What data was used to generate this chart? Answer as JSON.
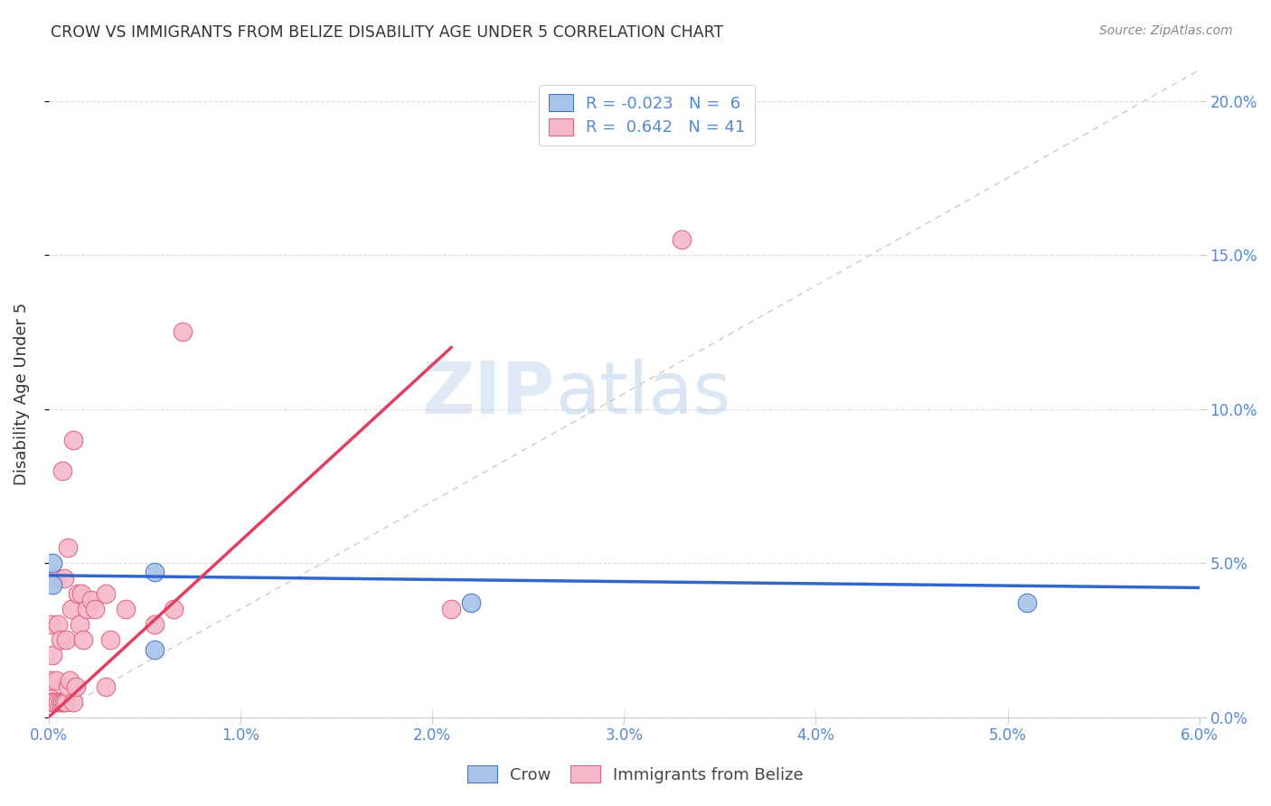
{
  "title": "CROW VS IMMIGRANTS FROM BELIZE DISABILITY AGE UNDER 5 CORRELATION CHART",
  "source": "Source: ZipAtlas.com",
  "ylabel": "Disability Age Under 5",
  "xlim": [
    0.0,
    0.06
  ],
  "ylim": [
    0.0,
    0.21
  ],
  "xticks": [
    0.0,
    0.01,
    0.02,
    0.03,
    0.04,
    0.05,
    0.06
  ],
  "xticklabels": [
    "0.0%",
    "1.0%",
    "2.0%",
    "3.0%",
    "4.0%",
    "5.0%",
    "6.0%"
  ],
  "yticks": [
    0.0,
    0.05,
    0.1,
    0.15,
    0.2
  ],
  "yticklabels_right": [
    "0.0%",
    "5.0%",
    "10.0%",
    "15.0%",
    "20.0%"
  ],
  "crow_fill": "#a8c4e8",
  "crow_edge": "#4472c4",
  "belize_fill": "#f4b8c8",
  "belize_edge": "#e06080",
  "crow_line_color": "#3366cc",
  "belize_line_color": "#e04060",
  "diag_line_color": "#cccccc",
  "legend_R1": "-0.023",
  "legend_N1": "6",
  "legend_R2": "0.642",
  "legend_N2": "41",
  "crow_points_x": [
    0.0002,
    0.0002,
    0.0055,
    0.0055,
    0.022,
    0.051
  ],
  "crow_points_y": [
    0.043,
    0.05,
    0.047,
    0.022,
    0.037,
    0.037
  ],
  "belize_points_x": [
    0.0001,
    0.0001,
    0.0001,
    0.0002,
    0.0002,
    0.0003,
    0.0004,
    0.0004,
    0.0005,
    0.0005,
    0.0006,
    0.0006,
    0.0007,
    0.0007,
    0.0008,
    0.0008,
    0.0009,
    0.0009,
    0.001,
    0.001,
    0.0011,
    0.0012,
    0.0013,
    0.0013,
    0.0014,
    0.0015,
    0.0016,
    0.0017,
    0.0018,
    0.002,
    0.0022,
    0.0024,
    0.003,
    0.003,
    0.0032,
    0.004,
    0.0055,
    0.0065,
    0.007,
    0.021,
    0.033
  ],
  "belize_points_y": [
    0.006,
    0.012,
    0.03,
    0.005,
    0.02,
    0.005,
    0.012,
    0.045,
    0.005,
    0.03,
    0.005,
    0.025,
    0.005,
    0.08,
    0.005,
    0.045,
    0.005,
    0.025,
    0.01,
    0.055,
    0.012,
    0.035,
    0.005,
    0.09,
    0.01,
    0.04,
    0.03,
    0.04,
    0.025,
    0.035,
    0.038,
    0.035,
    0.01,
    0.04,
    0.025,
    0.035,
    0.03,
    0.035,
    0.125,
    0.035,
    0.155
  ],
  "crow_line_x": [
    0.0,
    0.06
  ],
  "crow_line_y": [
    0.046,
    0.042
  ],
  "belize_line_x": [
    0.0,
    0.021
  ],
  "belize_line_y": [
    0.0,
    0.12
  ],
  "diag_line_x": [
    0.0,
    0.06
  ],
  "diag_line_y": [
    0.0,
    0.21
  ],
  "watermark_zip": "ZIP",
  "watermark_atlas": "atlas",
  "background_color": "#ffffff",
  "grid_color": "#dddddd",
  "tick_color": "#5588cc",
  "title_color": "#333333"
}
